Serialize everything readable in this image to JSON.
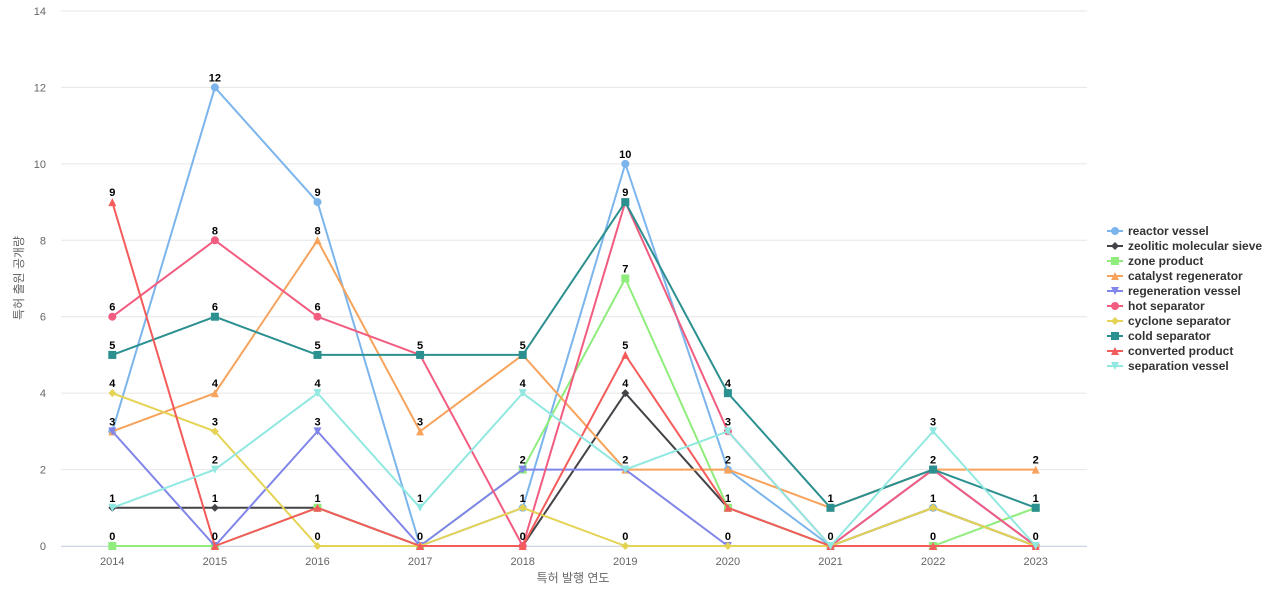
{
  "chart_data": {
    "type": "line",
    "title": "",
    "xlabel": "특허 발행 연도",
    "ylabel": "특허 출원 공개량",
    "ylim": [
      0,
      14
    ],
    "yticks": [
      0,
      2,
      4,
      6,
      8,
      10,
      12,
      14
    ],
    "categories": [
      "2014",
      "2015",
      "2016",
      "2017",
      "2018",
      "2019",
      "2020",
      "2021",
      "2022",
      "2023"
    ],
    "legend_position": "right",
    "series": [
      {
        "name": "reactor vessel",
        "color": "#7cb5ec",
        "marker": "circle",
        "values": [
          3,
          12,
          9,
          0,
          1,
          10,
          2,
          0,
          1,
          0
        ]
      },
      {
        "name": "zeolitic molecular sieve",
        "color": "#434348",
        "marker": "diamond",
        "values": [
          1,
          1,
          1,
          0,
          0,
          4,
          1,
          0,
          1,
          0
        ]
      },
      {
        "name": "zone product",
        "color": "#90ed7d",
        "marker": "square",
        "values": [
          0,
          0,
          1,
          0,
          2,
          7,
          1,
          0,
          0,
          1
        ]
      },
      {
        "name": "catalyst regenerator",
        "color": "#f7a35c",
        "marker": "triangle",
        "values": [
          3,
          4,
          8,
          3,
          5,
          2,
          2,
          1,
          2,
          2
        ]
      },
      {
        "name": "regeneration vessel",
        "color": "#8085e9",
        "marker": "triangle-down",
        "values": [
          3,
          0,
          3,
          0,
          2,
          2,
          0,
          0,
          2,
          0
        ]
      },
      {
        "name": "hot separator",
        "color": "#f15c80",
        "marker": "circle",
        "values": [
          6,
          8,
          6,
          5,
          0,
          9,
          3,
          0,
          2,
          0
        ]
      },
      {
        "name": "cyclone separator",
        "color": "#e4d354",
        "marker": "diamond",
        "values": [
          4,
          3,
          0,
          0,
          1,
          0,
          0,
          0,
          1,
          0
        ]
      },
      {
        "name": "cold separator",
        "color": "#2b908f",
        "marker": "square",
        "values": [
          5,
          6,
          5,
          5,
          5,
          9,
          4,
          1,
          2,
          1
        ]
      },
      {
        "name": "converted product",
        "color": "#f45b5b",
        "marker": "triangle",
        "values": [
          9,
          0,
          1,
          0,
          0,
          5,
          1,
          0,
          0,
          0
        ]
      },
      {
        "name": "separation vessel",
        "color": "#91e8e1",
        "marker": "triangle-down",
        "values": [
          1,
          2,
          4,
          1,
          4,
          2,
          3,
          0,
          3,
          0
        ]
      }
    ],
    "data_labels": [
      {
        "category": "2014",
        "labels": [
          "9",
          "6",
          "5",
          "4",
          "3",
          "1",
          "0"
        ]
      },
      {
        "category": "2015",
        "labels": [
          "12",
          "8",
          "6",
          "4",
          "3",
          "2",
          "1",
          "0"
        ]
      },
      {
        "category": "2016",
        "labels": [
          "9",
          "8",
          "6",
          "5",
          "4",
          "3",
          "1",
          "0"
        ]
      },
      {
        "category": "2017",
        "labels": [
          "5",
          "3",
          "1",
          "0"
        ]
      },
      {
        "category": "2018",
        "labels": [
          "5",
          "4",
          "2",
          "1",
          "0"
        ]
      },
      {
        "category": "2019",
        "labels": [
          "10",
          "9",
          "7",
          "5",
          "4",
          "2",
          "0"
        ]
      },
      {
        "category": "2020",
        "labels": [
          "4",
          "3",
          "2",
          "1",
          "0"
        ]
      },
      {
        "category": "2021",
        "labels": [
          "1",
          "0"
        ]
      },
      {
        "category": "2022",
        "labels": [
          "3",
          "2",
          "1",
          "0"
        ]
      },
      {
        "category": "2023",
        "labels": [
          "2",
          "1",
          "0"
        ]
      }
    ]
  }
}
